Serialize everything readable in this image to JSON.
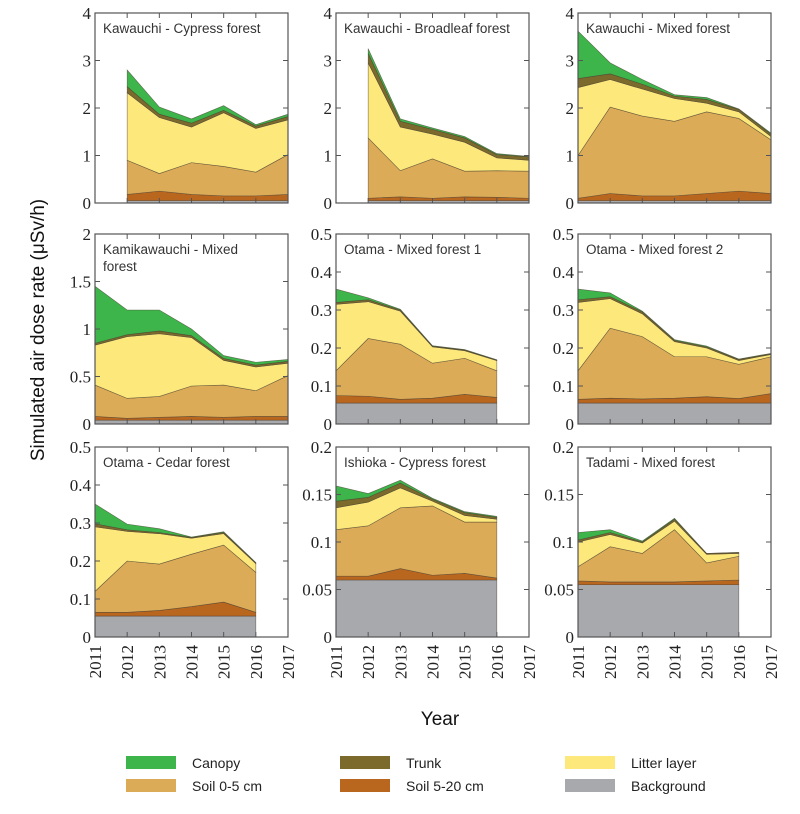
{
  "chart_data": {
    "type": "area",
    "stacked": true,
    "values_are_cumulative_stack_tops": true,
    "ylabel": "Simulated air dose rate (μSv/h)",
    "xlabel": "Year",
    "x_ticks": [
      2011,
      2012,
      2013,
      2014,
      2015,
      2016,
      2017
    ],
    "layers": [
      {
        "name": "Background",
        "color": "#a7a9ac"
      },
      {
        "name": "Soil 5-20 cm",
        "color": "#b9661f"
      },
      {
        "name": "Soil 0-5 cm",
        "color": "#dbab57"
      },
      {
        "name": "Litter layer",
        "color": "#fde87c"
      },
      {
        "name": "Trunk",
        "color": "#7b6a2c"
      },
      {
        "name": "Canopy",
        "color": "#3db54a"
      }
    ],
    "legend": {
      "placement": "bottom",
      "rows": [
        [
          "Canopy",
          "Trunk",
          "Litter layer"
        ],
        [
          "Soil 0-5 cm",
          "Soil 5-20 cm",
          "Background"
        ]
      ]
    },
    "panels": [
      {
        "title_lines": [
          "Kawauchi - Cypress forest"
        ],
        "ylim": [
          0,
          4
        ],
        "yticks": [
          "0",
          "1",
          "2",
          "3",
          "4"
        ],
        "tickvals": [
          0,
          1,
          2,
          3,
          4
        ],
        "x": [
          2012,
          2013,
          2014,
          2015,
          2016,
          2017
        ],
        "stack": {
          "Background": [
            0.05,
            0.05,
            0.05,
            0.05,
            0.05,
            0.05
          ],
          "Soil 5-20 cm": [
            0.18,
            0.25,
            0.18,
            0.15,
            0.15,
            0.18
          ],
          "Soil 0-5 cm": [
            0.9,
            0.62,
            0.85,
            0.77,
            0.65,
            1.02
          ],
          "Litter layer": [
            2.32,
            1.8,
            1.6,
            1.9,
            1.57,
            1.75
          ],
          "Trunk": [
            2.45,
            1.87,
            1.68,
            1.95,
            1.62,
            1.82
          ],
          "Canopy": [
            2.8,
            2.02,
            1.77,
            2.05,
            1.65,
            1.87
          ]
        }
      },
      {
        "title_lines": [
          "Kawauchi - Broadleaf forest"
        ],
        "ylim": [
          0,
          4
        ],
        "yticks": [
          "0",
          "1",
          "2",
          "3",
          "4"
        ],
        "tickvals": [
          0,
          1,
          2,
          3,
          4
        ],
        "x": [
          2012,
          2013,
          2014,
          2015,
          2016,
          2017
        ],
        "stack": {
          "Background": [
            0.05,
            0.05,
            0.05,
            0.05,
            0.05,
            0.05
          ],
          "Soil 5-20 cm": [
            0.1,
            0.13,
            0.1,
            0.13,
            0.12,
            0.1
          ],
          "Soil 0-5 cm": [
            1.37,
            0.68,
            0.93,
            0.67,
            0.68,
            0.67
          ],
          "Litter layer": [
            2.95,
            1.6,
            1.45,
            1.28,
            0.95,
            0.9
          ],
          "Trunk": [
            3.15,
            1.72,
            1.55,
            1.37,
            1.02,
            0.97
          ],
          "Canopy": [
            3.25,
            1.77,
            1.58,
            1.4,
            1.04,
            0.98
          ]
        }
      },
      {
        "title_lines": [
          "Kawauchi - Mixed forest"
        ],
        "ylim": [
          0,
          4
        ],
        "yticks": [
          "0",
          "1",
          "2",
          "3",
          "4"
        ],
        "tickvals": [
          0,
          1,
          2,
          3,
          4
        ],
        "x": [
          2011,
          2012,
          2013,
          2014,
          2015,
          2016,
          2017
        ],
        "stack": {
          "Background": [
            0.05,
            0.05,
            0.05,
            0.05,
            0.05,
            0.05,
            0.05
          ],
          "Soil 5-20 cm": [
            0.1,
            0.2,
            0.15,
            0.15,
            0.2,
            0.25,
            0.2
          ],
          "Soil 0-5 cm": [
            1.0,
            2.02,
            1.83,
            1.72,
            1.92,
            1.78,
            1.33
          ],
          "Litter layer": [
            2.43,
            2.6,
            2.4,
            2.2,
            2.1,
            1.92,
            1.4
          ],
          "Trunk": [
            2.62,
            2.72,
            2.5,
            2.25,
            2.18,
            1.97,
            1.45
          ],
          "Canopy": [
            3.62,
            2.95,
            2.6,
            2.28,
            2.22,
            1.98,
            1.47
          ]
        }
      },
      {
        "title_lines": [
          "Kamikawauchi - Mixed",
          "forest"
        ],
        "ylim": [
          0,
          2
        ],
        "yticks": [
          "0",
          "0.5",
          "1",
          "1.5",
          "2"
        ],
        "tickvals": [
          0,
          0.5,
          1,
          1.5,
          2
        ],
        "x": [
          2011,
          2012,
          2013,
          2014,
          2015,
          2016,
          2017
        ],
        "stack": {
          "Background": [
            0.04,
            0.04,
            0.04,
            0.04,
            0.04,
            0.04,
            0.04
          ],
          "Soil 5-20 cm": [
            0.08,
            0.06,
            0.07,
            0.08,
            0.07,
            0.08,
            0.08
          ],
          "Soil 0-5 cm": [
            0.41,
            0.27,
            0.29,
            0.4,
            0.41,
            0.35,
            0.51
          ],
          "Litter layer": [
            0.83,
            0.92,
            0.95,
            0.91,
            0.67,
            0.6,
            0.64
          ],
          "Trunk": [
            0.85,
            0.94,
            0.98,
            0.93,
            0.69,
            0.62,
            0.66
          ],
          "Canopy": [
            1.45,
            1.2,
            1.2,
            1.0,
            0.72,
            0.65,
            0.68
          ]
        }
      },
      {
        "title_lines": [
          "Otama - Mixed forest 1"
        ],
        "ylim": [
          0,
          0.5
        ],
        "yticks": [
          "0",
          "0.1",
          "0.2",
          "0.3",
          "0.4",
          "0.5"
        ],
        "tickvals": [
          0,
          0.1,
          0.2,
          0.3,
          0.4,
          0.5
        ],
        "x": [
          2011,
          2012,
          2013,
          2014,
          2015,
          2016
        ],
        "stack": {
          "Background": [
            0.055,
            0.055,
            0.055,
            0.055,
            0.055,
            0.055
          ],
          "Soil 5-20 cm": [
            0.075,
            0.073,
            0.065,
            0.068,
            0.078,
            0.07
          ],
          "Soil 0-5 cm": [
            0.14,
            0.225,
            0.21,
            0.16,
            0.173,
            0.14
          ],
          "Litter layer": [
            0.315,
            0.322,
            0.297,
            0.203,
            0.193,
            0.167
          ],
          "Trunk": [
            0.32,
            0.327,
            0.3,
            0.205,
            0.195,
            0.168
          ],
          "Canopy": [
            0.355,
            0.332,
            0.302,
            0.206,
            0.196,
            0.169
          ]
        }
      },
      {
        "title_lines": [
          "Otama - Mixed forest 2"
        ],
        "ylim": [
          0,
          0.5
        ],
        "yticks": [
          "0",
          "0.1",
          "0.2",
          "0.3",
          "0.4",
          "0.5"
        ],
        "tickvals": [
          0,
          0.1,
          0.2,
          0.3,
          0.4,
          0.5
        ],
        "x": [
          2011,
          2012,
          2013,
          2014,
          2015,
          2016,
          2017
        ],
        "stack": {
          "Background": [
            0.055,
            0.055,
            0.055,
            0.055,
            0.055,
            0.055,
            0.055
          ],
          "Soil 5-20 cm": [
            0.065,
            0.068,
            0.066,
            0.068,
            0.072,
            0.067,
            0.08
          ],
          "Soil 0-5 cm": [
            0.14,
            0.252,
            0.23,
            0.177,
            0.177,
            0.157,
            0.177
          ],
          "Litter layer": [
            0.32,
            0.33,
            0.29,
            0.217,
            0.2,
            0.167,
            0.183
          ],
          "Trunk": [
            0.327,
            0.335,
            0.295,
            0.22,
            0.203,
            0.17,
            0.185
          ],
          "Canopy": [
            0.355,
            0.345,
            0.297,
            0.222,
            0.205,
            0.171,
            0.186
          ]
        }
      },
      {
        "title_lines": [
          "Otama - Cedar forest"
        ],
        "ylim": [
          0,
          0.5
        ],
        "yticks": [
          "0",
          "0.1",
          "0.2",
          "0.3",
          "0.4",
          "0.5"
        ],
        "tickvals": [
          0,
          0.1,
          0.2,
          0.3,
          0.4,
          0.5
        ],
        "x": [
          2011,
          2012,
          2013,
          2014,
          2015,
          2016
        ],
        "stack": {
          "Background": [
            0.055,
            0.055,
            0.055,
            0.055,
            0.055,
            0.055
          ],
          "Soil 5-20 cm": [
            0.065,
            0.065,
            0.07,
            0.08,
            0.092,
            0.065
          ],
          "Soil 0-5 cm": [
            0.12,
            0.2,
            0.192,
            0.218,
            0.242,
            0.17
          ],
          "Litter layer": [
            0.29,
            0.278,
            0.272,
            0.26,
            0.272,
            0.193
          ],
          "Trunk": [
            0.298,
            0.282,
            0.275,
            0.262,
            0.275,
            0.195
          ],
          "Canopy": [
            0.35,
            0.297,
            0.285,
            0.263,
            0.277,
            0.196
          ]
        }
      },
      {
        "title_lines": [
          "Ishioka - Cypress forest"
        ],
        "ylim": [
          0,
          0.2
        ],
        "yticks": [
          "0",
          "0.05",
          "0.1",
          "0.15",
          "0.2"
        ],
        "tickvals": [
          0,
          0.05,
          0.1,
          0.15,
          0.2
        ],
        "x": [
          2011,
          2012,
          2013,
          2014,
          2015,
          2016
        ],
        "stack": {
          "Background": [
            0.06,
            0.06,
            0.06,
            0.06,
            0.06,
            0.06
          ],
          "Soil 5-20 cm": [
            0.064,
            0.064,
            0.072,
            0.065,
            0.067,
            0.062
          ],
          "Soil 0-5 cm": [
            0.113,
            0.117,
            0.136,
            0.138,
            0.121,
            0.121
          ],
          "Litter layer": [
            0.136,
            0.142,
            0.157,
            0.143,
            0.128,
            0.124
          ],
          "Trunk": [
            0.143,
            0.147,
            0.162,
            0.145,
            0.131,
            0.126
          ],
          "Canopy": [
            0.159,
            0.151,
            0.165,
            0.146,
            0.132,
            0.127
          ]
        }
      },
      {
        "title_lines": [
          "Tadami - Mixed forest"
        ],
        "ylim": [
          0,
          0.2
        ],
        "yticks": [
          "0",
          "0.05",
          "0.1",
          "0.15",
          "0.2"
        ],
        "tickvals": [
          0,
          0.05,
          0.1,
          0.15,
          0.2
        ],
        "x": [
          2011,
          2012,
          2013,
          2014,
          2015,
          2016
        ],
        "stack": {
          "Background": [
            0.055,
            0.055,
            0.055,
            0.055,
            0.055,
            0.055
          ],
          "Soil 5-20 cm": [
            0.059,
            0.058,
            0.058,
            0.058,
            0.059,
            0.06
          ],
          "Soil 0-5 cm": [
            0.074,
            0.095,
            0.088,
            0.113,
            0.078,
            0.085
          ],
          "Litter layer": [
            0.1,
            0.108,
            0.099,
            0.122,
            0.087,
            0.088
          ],
          "Trunk": [
            0.102,
            0.11,
            0.1,
            0.124,
            0.088,
            0.089
          ],
          "Canopy": [
            0.11,
            0.113,
            0.101,
            0.125,
            0.088,
            0.089
          ]
        }
      }
    ]
  }
}
